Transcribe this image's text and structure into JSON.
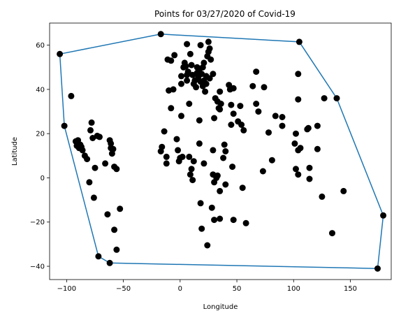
{
  "chart_data": {
    "type": "scatter",
    "title": "Points for 03/27/2020 of Covid-19",
    "xlabel": "Longitude",
    "ylabel": "Latitude",
    "xlim": [
      -115,
      186
    ],
    "ylim": [
      -46,
      70
    ],
    "xticks": [
      -100,
      -50,
      0,
      50,
      100,
      150
    ],
    "yticks": [
      -40,
      -20,
      0,
      20,
      40,
      60
    ],
    "grid": false,
    "colors": {
      "points": "#000000",
      "hull": "#1f77b4"
    },
    "hull": [
      [
        -106,
        56
      ],
      [
        -17,
        65
      ],
      [
        105,
        61.5
      ],
      [
        138,
        36
      ],
      [
        179,
        -17
      ],
      [
        174,
        -41
      ],
      [
        -62,
        -38.5
      ],
      [
        -72,
        -35.5
      ],
      [
        -102,
        23.5
      ],
      [
        -106,
        56
      ]
    ],
    "points": [
      [
        -106,
        56
      ],
      [
        -102,
        23.5
      ],
      [
        -96,
        37
      ],
      [
        -92,
        16.5
      ],
      [
        -91,
        14.5
      ],
      [
        -90,
        17
      ],
      [
        -89,
        13.5
      ],
      [
        -88,
        15
      ],
      [
        -87,
        14
      ],
      [
        -86,
        12.5
      ],
      [
        -84,
        10
      ],
      [
        -82,
        8.5
      ],
      [
        -80,
        -2
      ],
      [
        -79,
        21.5
      ],
      [
        -78,
        25
      ],
      [
        -77,
        18
      ],
      [
        -76,
        -9
      ],
      [
        -75,
        4.5
      ],
      [
        -73,
        19
      ],
      [
        -71,
        18.5
      ],
      [
        -72,
        -35.5
      ],
      [
        -66,
        6.5
      ],
      [
        -64,
        -16.5
      ],
      [
        -62,
        17
      ],
      [
        -61,
        15.5
      ],
      [
        -61,
        13.5
      ],
      [
        -60,
        11
      ],
      [
        -59,
        13
      ],
      [
        -58,
        -23.5
      ],
      [
        -58,
        5
      ],
      [
        -56,
        4
      ],
      [
        -56,
        -32.5
      ],
      [
        -53,
        -14
      ],
      [
        -62,
        -38.5
      ],
      [
        -17,
        65
      ],
      [
        -17,
        12
      ],
      [
        -16,
        14
      ],
      [
        -14,
        21
      ],
      [
        -12,
        9.5
      ],
      [
        -12,
        6.5
      ],
      [
        -11,
        53.5
      ],
      [
        -10,
        39.5
      ],
      [
        -8,
        31.5
      ],
      [
        -8,
        53
      ],
      [
        -6,
        40
      ],
      [
        -5,
        55.5
      ],
      [
        -3,
        17.5
      ],
      [
        -2,
        12.5
      ],
      [
        -1,
        7.5
      ],
      [
        0,
        9
      ],
      [
        1,
        42.5
      ],
      [
        1,
        46
      ],
      [
        1,
        28
      ],
      [
        2,
        9.5
      ],
      [
        3,
        50
      ],
      [
        4,
        52
      ],
      [
        5,
        50.5
      ],
      [
        6,
        60.5
      ],
      [
        6,
        44
      ],
      [
        6,
        46.5
      ],
      [
        7,
        48
      ],
      [
        8,
        9.5
      ],
      [
        8,
        33.5
      ],
      [
        9,
        56
      ],
      [
        9,
        1.5
      ],
      [
        10,
        4
      ],
      [
        10,
        51
      ],
      [
        11,
        46.5
      ],
      [
        12,
        42.5
      ],
      [
        11,
        -1
      ],
      [
        12,
        7.5
      ],
      [
        13,
        44
      ],
      [
        14,
        41
      ],
      [
        15,
        47.5
      ],
      [
        15,
        50
      ],
      [
        16,
        45.5
      ],
      [
        17,
        15.5
      ],
      [
        17,
        26
      ],
      [
        17,
        49
      ],
      [
        18,
        43.5
      ],
      [
        18,
        -11.5
      ],
      [
        18,
        60
      ],
      [
        19,
        47
      ],
      [
        19,
        -23
      ],
      [
        20,
        41.5
      ],
      [
        20,
        50
      ],
      [
        21,
        44
      ],
      [
        21,
        52
      ],
      [
        21,
        6.5
      ],
      [
        22,
        39
      ],
      [
        23,
        42.5
      ],
      [
        23,
        46
      ],
      [
        24,
        -30.5
      ],
      [
        24,
        55
      ],
      [
        25,
        57
      ],
      [
        25,
        61.5
      ],
      [
        26,
        58.5
      ],
      [
        26,
        45
      ],
      [
        27,
        53.5
      ],
      [
        28,
        -13.5
      ],
      [
        29,
        47
      ],
      [
        29,
        1.5
      ],
      [
        29,
        12.5
      ],
      [
        30,
        -2
      ],
      [
        30,
        -19
      ],
      [
        30,
        27
      ],
      [
        31,
        36
      ],
      [
        32,
        0
      ],
      [
        33,
        1
      ],
      [
        33,
        34.5
      ],
      [
        34,
        31.5
      ],
      [
        35,
        -6
      ],
      [
        35,
        -18.5
      ],
      [
        35,
        39
      ],
      [
        35,
        31
      ],
      [
        36,
        33.5
      ],
      [
        38,
        9
      ],
      [
        39,
        15
      ],
      [
        40,
        -3
      ],
      [
        40,
        12
      ],
      [
        43,
        42
      ],
      [
        44,
        40
      ],
      [
        45,
        24
      ],
      [
        45,
        33
      ],
      [
        46,
        5
      ],
      [
        47,
        -19
      ],
      [
        47,
        29
      ],
      [
        47,
        40.5
      ],
      [
        51,
        25.5
      ],
      [
        53,
        32.5
      ],
      [
        54,
        24
      ],
      [
        55,
        -4.5
      ],
      [
        56,
        21.5
      ],
      [
        58,
        -20.5
      ],
      [
        64,
        41.5
      ],
      [
        67,
        48
      ],
      [
        67,
        33.5
      ],
      [
        69,
        30
      ],
      [
        73,
        3
      ],
      [
        74,
        41
      ],
      [
        78,
        20.5
      ],
      [
        81,
        8
      ],
      [
        84,
        28
      ],
      [
        90,
        27.5
      ],
      [
        90,
        23.5
      ],
      [
        101,
        15.5
      ],
      [
        102,
        20
      ],
      [
        102,
        4
      ],
      [
        104,
        1.5
      ],
      [
        104,
        12.5
      ],
      [
        104,
        35.5
      ],
      [
        104,
        47
      ],
      [
        105,
        61.5
      ],
      [
        106,
        13.5
      ],
      [
        112,
        22
      ],
      [
        113,
        22.5
      ],
      [
        114,
        4.5
      ],
      [
        114,
        -0.5
      ],
      [
        121,
        13
      ],
      [
        121,
        23.5
      ],
      [
        125,
        -8.5
      ],
      [
        127,
        36
      ],
      [
        134,
        -25
      ],
      [
        138,
        36
      ],
      [
        144,
        -6
      ],
      [
        174,
        -41
      ],
      [
        179,
        -17
      ]
    ]
  }
}
